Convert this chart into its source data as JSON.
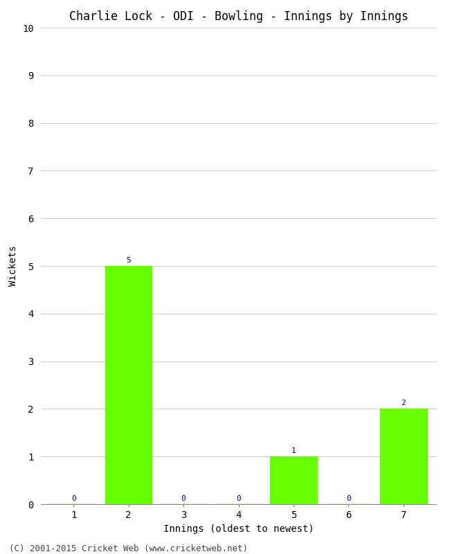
{
  "title": "Charlie Lock - ODI - Bowling - Innings by Innings",
  "xlabel": "Innings (oldest to newest)",
  "ylabel": "Wickets",
  "categories": [
    "1",
    "2",
    "3",
    "4",
    "5",
    "6",
    "7"
  ],
  "values": [
    0,
    5,
    0,
    0,
    1,
    0,
    2
  ],
  "bar_color": "#66ff00",
  "bar_edge_color": "#66ff00",
  "ylim": [
    0,
    10
  ],
  "yticks": [
    0,
    1,
    2,
    3,
    4,
    5,
    6,
    7,
    8,
    9,
    10
  ],
  "grid_color": "#cccccc",
  "bg_color": "#ffffff",
  "title_fontsize": 12,
  "axis_label_fontsize": 10,
  "tick_fontsize": 10,
  "label_fontsize": 8,
  "label_color": "#000080",
  "footer": "(C) 2001-2015 Cricket Web (www.cricketweb.net)",
  "footer_fontsize": 9,
  "footer_color": "#444444"
}
